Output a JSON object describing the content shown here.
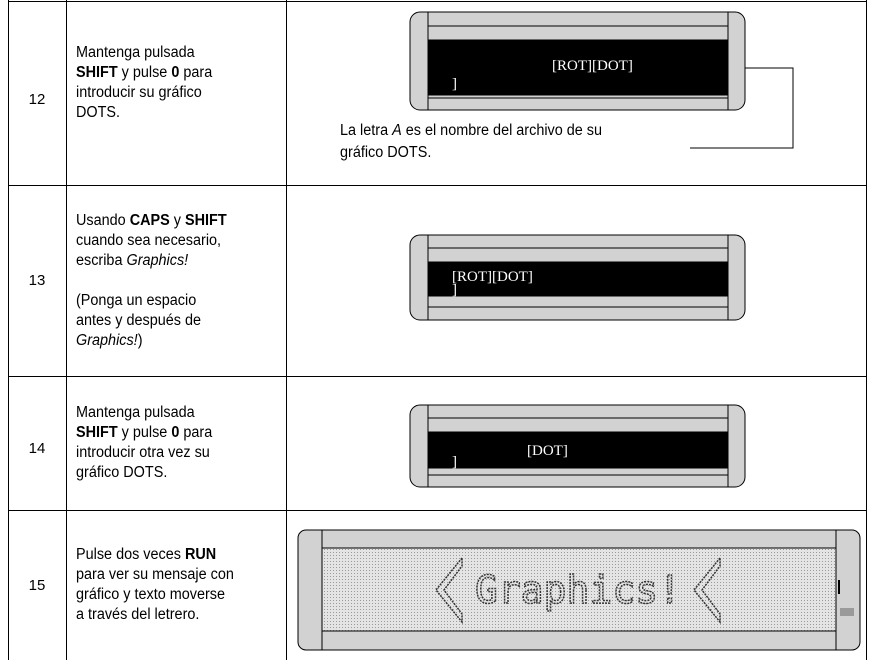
{
  "rows": [
    {
      "step": "12",
      "instruction": [
        [
          [
            {
              "text": "Mantenga pulsada"
            }
          ],
          [
            {
              "text": "SHIFT",
              "style": "bold"
            },
            {
              "text": " y pulse "
            },
            {
              "text": "0",
              "style": "bold"
            },
            {
              "text": " para"
            }
          ],
          [
            {
              "text": "introducir su gráfico"
            }
          ],
          [
            {
              "text": "DOTS."
            }
          ]
        ]
      ],
      "display": {
        "line1": "[ROT][DOT]",
        "line2": "]"
      },
      "caption": [
        {
          "text": "La letra "
        },
        {
          "text": "A",
          "style": "italic"
        },
        {
          "text": " es el nombre del archivo de su gráfico DOTS."
        }
      ]
    },
    {
      "step": "13",
      "instruction": [
        [
          [
            {
              "text": "Usando "
            },
            {
              "text": "CAPS",
              "style": "bold"
            },
            {
              "text": " y "
            },
            {
              "text": "SHIFT",
              "style": "bold"
            }
          ],
          [
            {
              "text": "cuando sea necesario,"
            }
          ],
          [
            {
              "text": "escriba "
            },
            {
              "text": "Graphics!",
              "style": "italic"
            }
          ]
        ],
        [
          [
            {
              "text": "(Ponga un espacio"
            }
          ],
          [
            {
              "text": "antes y después de"
            }
          ],
          [
            {
              "text": "Graphics!",
              "style": "italic"
            },
            {
              "text": ")"
            }
          ]
        ]
      ],
      "display": {
        "line1": "[ROT][DOT]",
        "line2": "]"
      }
    },
    {
      "step": "14",
      "instruction": [
        [
          [
            {
              "text": "Mantenga pulsada"
            }
          ],
          [
            {
              "text": "SHIFT",
              "style": "bold"
            },
            {
              "text": " y pulse "
            },
            {
              "text": "0",
              "style": "bold"
            },
            {
              "text": " para"
            }
          ],
          [
            {
              "text": "introducir otra vez su"
            }
          ],
          [
            {
              "text": "gráfico DOTS."
            }
          ]
        ]
      ],
      "display": {
        "line1": "[DOT]",
        "line2": "]"
      }
    },
    {
      "step": "15",
      "instruction": [
        [
          [
            {
              "text": "Pulse dos veces "
            },
            {
              "text": "RUN",
              "style": "bold"
            }
          ],
          [
            {
              "text": "para ver su mensaje con"
            }
          ],
          [
            {
              "text": "gráfico y texto moverse"
            }
          ],
          [
            {
              "text": "a través del letrero."
            }
          ]
        ]
      ],
      "display": {
        "line1": "Graphics!"
      }
    }
  ]
}
